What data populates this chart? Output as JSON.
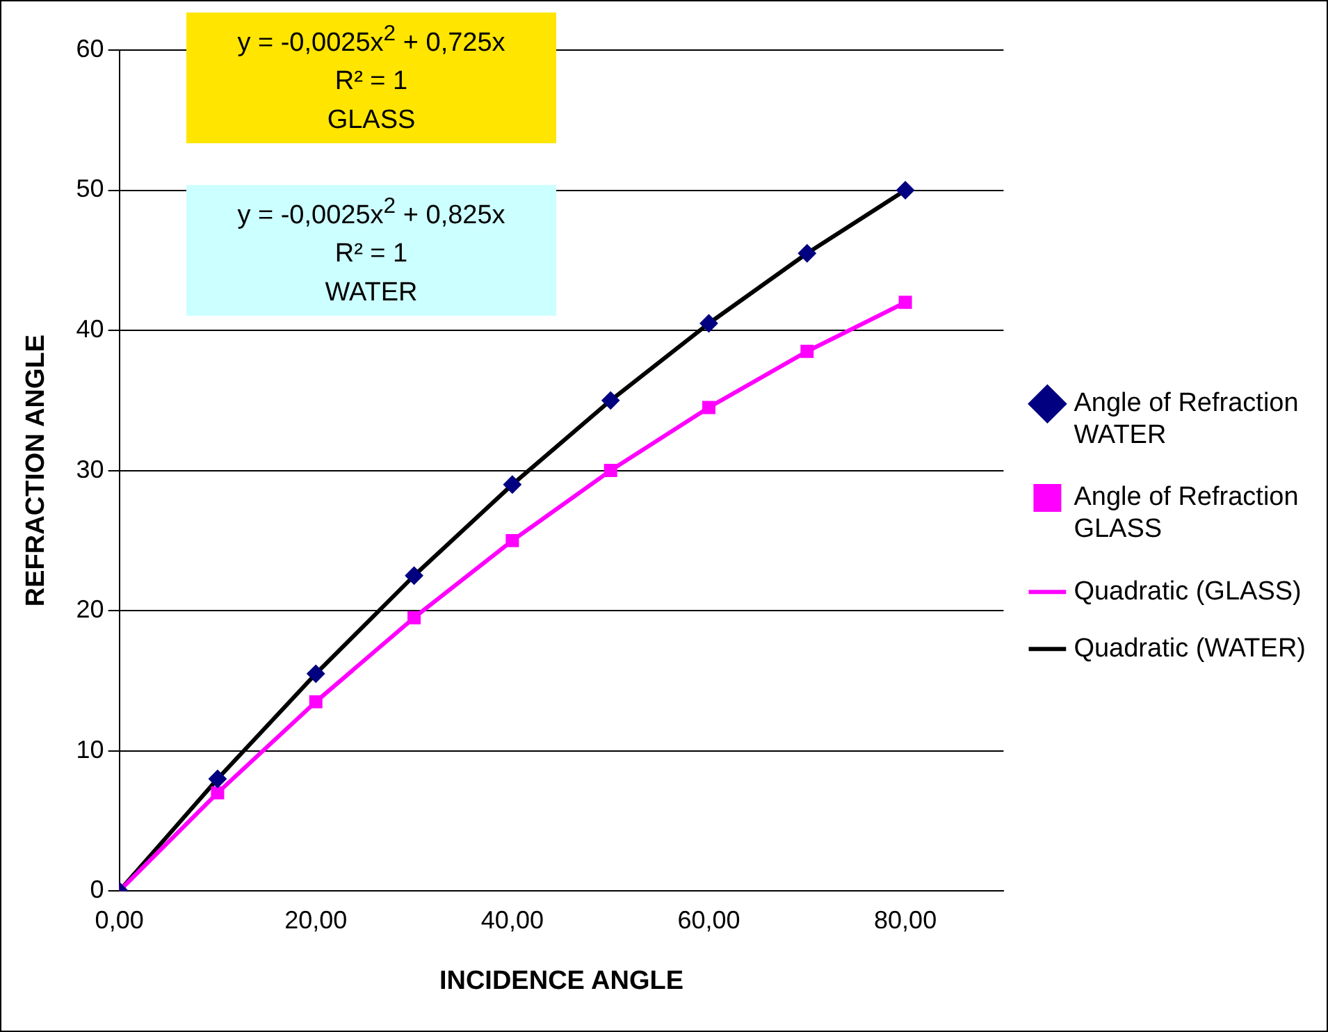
{
  "chart_data": {
    "type": "scatter",
    "xlabel": "INCIDENCE ANGLE",
    "ylabel": "REFRACTION ANGLE",
    "x": [
      0,
      10,
      20,
      30,
      40,
      50,
      60,
      70,
      80
    ],
    "series": [
      {
        "name": "Angle of Refraction WATER",
        "color": "#000080",
        "marker": "diamond",
        "values": [
          0,
          8,
          15.5,
          22.5,
          29,
          35,
          40.5,
          45.5,
          50
        ]
      },
      {
        "name": "Angle of Refraction GLASS",
        "color": "#ff00ff",
        "marker": "square",
        "values": [
          0,
          7,
          13.5,
          19.5,
          25,
          30,
          34.5,
          38.5,
          42
        ]
      },
      {
        "name": "Quadratic (GLASS)",
        "type": "line",
        "color": "#ff00ff",
        "marker": "none",
        "x": [
          0,
          10,
          20,
          30,
          40,
          50,
          60,
          70,
          80
        ],
        "values": [
          0,
          7,
          13.5,
          19.5,
          25,
          30,
          34.5,
          38.5,
          42
        ]
      },
      {
        "name": "Quadratic (WATER)",
        "type": "line",
        "color": "#000000",
        "marker": "none",
        "x": [
          0,
          10,
          20,
          30,
          40,
          50,
          60,
          70,
          80
        ],
        "values": [
          0,
          8,
          15.5,
          22.5,
          29,
          35,
          40.5,
          45.5,
          50
        ]
      }
    ],
    "xlim": [
      0,
      90
    ],
    "xticks": [
      {
        "value": 0,
        "label": "0,00"
      },
      {
        "value": 20,
        "label": "20,00"
      },
      {
        "value": 40,
        "label": "40,00"
      },
      {
        "value": 60,
        "label": "60,00"
      },
      {
        "value": 80,
        "label": "80,00"
      }
    ],
    "ylim": [
      0,
      60
    ],
    "yticks": [
      0,
      10,
      20,
      30,
      40,
      50,
      60
    ],
    "grid": "y",
    "legend": "right",
    "annotations": [
      "y = -0,0025x$^{2}$ + 0,725x\nR² = 1\nGLASS",
      "y = -0,0025x$^{2}$ + 0,825x\nR² = 1\nWATER"
    ]
  }
}
